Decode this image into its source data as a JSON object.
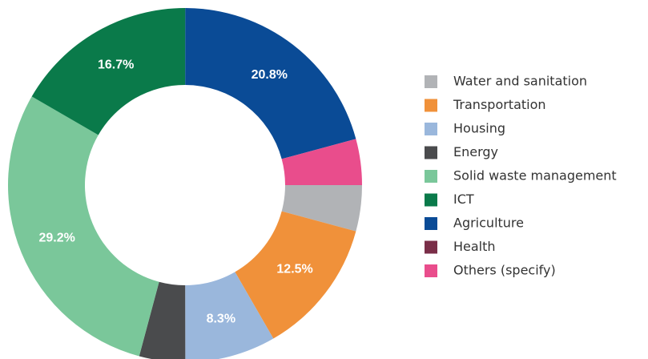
{
  "chart_data": {
    "type": "donut",
    "categories": [
      "Water and sanitation",
      "Transportation",
      "Housing",
      "Energy",
      "Solid waste management",
      "ICT",
      "Agriculture",
      "Health",
      "Others (specify)"
    ],
    "values": [
      4.2,
      12.5,
      8.3,
      4.2,
      29.2,
      16.7,
      20.8,
      0,
      4.2
    ],
    "value_labels": [
      null,
      "12.5%",
      "8.3%",
      null,
      "29.2%",
      "16.7%",
      "20.8%",
      null,
      null
    ],
    "colors": [
      "#b1b3b6",
      "#f0913a",
      "#9ab7dc",
      "#4a4b4d",
      "#7ac79a",
      "#0a7a4a",
      "#0a4b96",
      "#7a2e48",
      "#e94d8c"
    ],
    "legend": "right"
  }
}
